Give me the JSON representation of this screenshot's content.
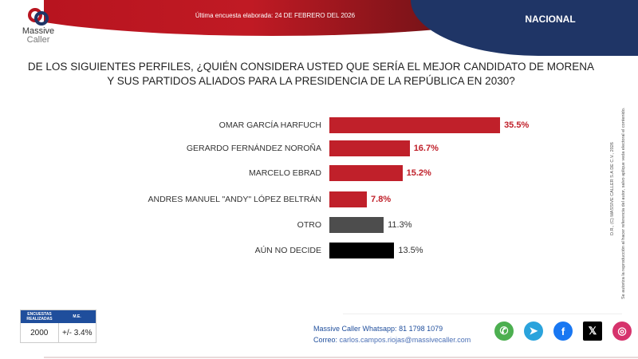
{
  "header": {
    "survey_date": "Última encuesta elaborada: 24 DE FEBRERO DEL 2026",
    "region": "NACIONAL",
    "logo": {
      "line1": "Massive",
      "line2": "Caller"
    }
  },
  "question": "DE LOS SIGUIENTES PERFILES, ¿QUIÉN CONSIDERA USTED QUE SERÍA EL MEJOR CANDIDATO DE MORENA Y SUS PARTIDOS ALIADOS PARA LA PRESIDENCIA DE LA REPÚBLICA EN 2030?",
  "chart_data": {
    "type": "bar",
    "orientation": "horizontal",
    "categories": [
      "OMAR GARCÍA HARFUCH",
      "GERARDO FERNÁNDEZ NOROÑA",
      "MARCELO EBRAD",
      "ANDRES MANUEL \"ANDY\" LÓPEZ BELTRÁN",
      "OTRO",
      "AÚN NO DECIDE"
    ],
    "values": [
      35.5,
      16.7,
      15.2,
      7.8,
      11.3,
      13.5
    ],
    "labels": [
      "35.5%",
      "16.7%",
      "15.2%",
      "7.8%",
      "11.3%",
      "13.5%"
    ],
    "colors": [
      "#c0202a",
      "#c0202a",
      "#c0202a",
      "#c0202a",
      "#4d4d4d",
      "#000000"
    ],
    "label_colors": [
      "#c0202a",
      "#c0202a",
      "#c0202a",
      "#c0202a",
      "#333333",
      "#333333"
    ],
    "unit": "%",
    "grid": false
  },
  "legal": {
    "line1": "D.R., (C) MASSIVE CALLER S.A DE C.V., 2026",
    "line2": "Se autoriza la reproducción al hacer referencia del autor, salvo aplique veda electoral el contenido."
  },
  "stats": {
    "surveys_label": "ENCUESTAS REALIZADAS",
    "me_label": "M.E.",
    "surveys": "2000",
    "me": "+/- 3.4%"
  },
  "contact": {
    "whatsapp_label": "Massive Caller Whatsapp:",
    "whatsapp": "81 1798 1079",
    "email_label": "Correo:",
    "email": "carlos.campos.riojas@massivecaller.com"
  },
  "social": [
    {
      "icon": "whatsapp-icon",
      "glyph": "✆",
      "color": "#4caf50"
    },
    {
      "icon": "telegram-icon",
      "glyph": "➤",
      "color": "#2aa3dc"
    },
    {
      "icon": "facebook-icon",
      "glyph": "f",
      "color": "#1877f2"
    },
    {
      "icon": "x-icon",
      "glyph": "𝕏",
      "color": "#000000"
    },
    {
      "icon": "instagram-icon",
      "glyph": "◎",
      "color": "#d6336c"
    }
  ]
}
